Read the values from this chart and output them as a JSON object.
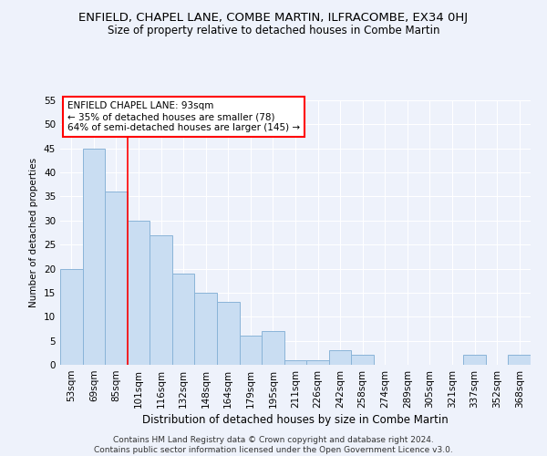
{
  "title": "ENFIELD, CHAPEL LANE, COMBE MARTIN, ILFRACOMBE, EX34 0HJ",
  "subtitle": "Size of property relative to detached houses in Combe Martin",
  "xlabel": "Distribution of detached houses by size in Combe Martin",
  "ylabel": "Number of detached properties",
  "footer_line1": "Contains HM Land Registry data © Crown copyright and database right 2024.",
  "footer_line2": "Contains public sector information licensed under the Open Government Licence v3.0.",
  "categories": [
    "53sqm",
    "69sqm",
    "85sqm",
    "101sqm",
    "116sqm",
    "132sqm",
    "148sqm",
    "164sqm",
    "179sqm",
    "195sqm",
    "211sqm",
    "226sqm",
    "242sqm",
    "258sqm",
    "274sqm",
    "289sqm",
    "305sqm",
    "321sqm",
    "337sqm",
    "352sqm",
    "368sqm"
  ],
  "values": [
    20,
    45,
    36,
    30,
    27,
    19,
    15,
    13,
    6,
    7,
    1,
    1,
    3,
    2,
    0,
    0,
    0,
    0,
    2,
    0,
    2
  ],
  "bar_color": "#c9ddf2",
  "bar_edge_color": "#8ab4d8",
  "marker_bin_index": 2,
  "marker_color": "red",
  "annotation_box_text": "ENFIELD CHAPEL LANE: 93sqm\n← 35% of detached houses are smaller (78)\n64% of semi-detached houses are larger (145) →",
  "ylim": [
    0,
    55
  ],
  "yticks": [
    0,
    5,
    10,
    15,
    20,
    25,
    30,
    35,
    40,
    45,
    50,
    55
  ],
  "background_color": "#eef2fb",
  "grid_color": "#ffffff",
  "title_fontsize": 9.5,
  "subtitle_fontsize": 8.5,
  "xlabel_fontsize": 8.5,
  "ylabel_fontsize": 7.5,
  "tick_fontsize": 7.5,
  "footer_fontsize": 6.5,
  "ann_fontsize": 7.5
}
